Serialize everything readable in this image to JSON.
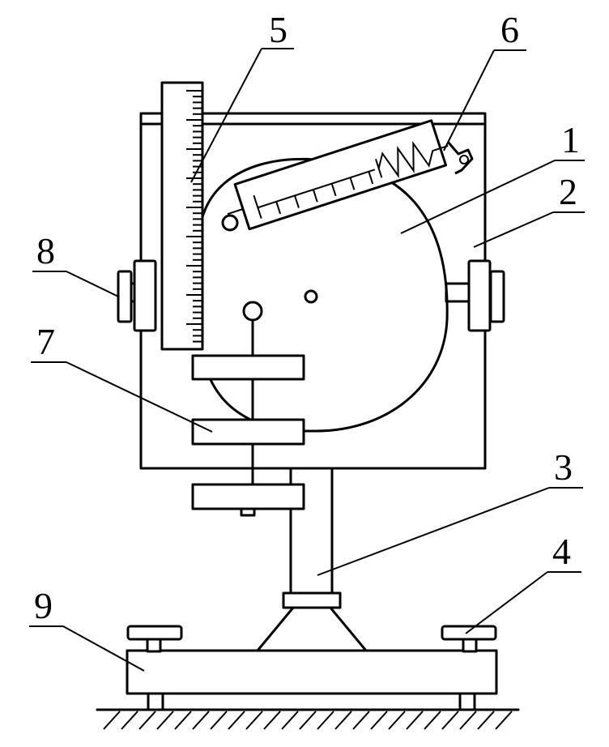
{
  "labels": {
    "frame_plate": "2",
    "disc": "1",
    "column": "3",
    "leveling_screw": "4",
    "scale_ruler": "5",
    "spring_balance": "6",
    "clamp_plate": "7",
    "knob": "8",
    "base": "9"
  }
}
